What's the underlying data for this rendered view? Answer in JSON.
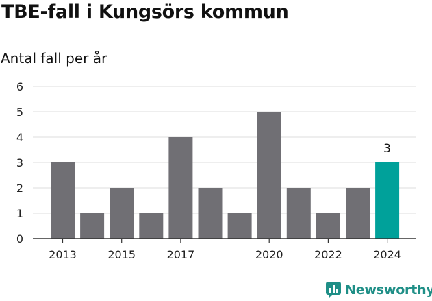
{
  "chart_data": {
    "type": "bar",
    "title": "TBE-fall i Kungsörs kommun",
    "subtitle": "Antal fall per år",
    "categories": [
      "2013",
      "2014",
      "2015",
      "2016",
      "2017",
      "2018",
      "2019",
      "2020",
      "2021",
      "2022",
      "2023",
      "2024"
    ],
    "values": [
      3,
      1,
      2,
      1,
      4,
      2,
      1,
      5,
      2,
      1,
      2,
      3
    ],
    "x_tick_labels": [
      "2013",
      "2015",
      "2017",
      "2020",
      "2022",
      "2024"
    ],
    "y_ticks": [
      0,
      1,
      2,
      3,
      4,
      5,
      6
    ],
    "ylim": [
      0,
      6
    ],
    "grid": true,
    "highlight": {
      "category": "2024",
      "label": "3"
    },
    "colors": {
      "bar": "#706f74",
      "highlight": "#00a19a",
      "grid": "#dddddd",
      "axis": "#333333"
    }
  },
  "branding": {
    "logo_text": "Newsworthy",
    "logo_icon": "newsworthy-chart-icon",
    "logo_color": "#1f8f87"
  }
}
